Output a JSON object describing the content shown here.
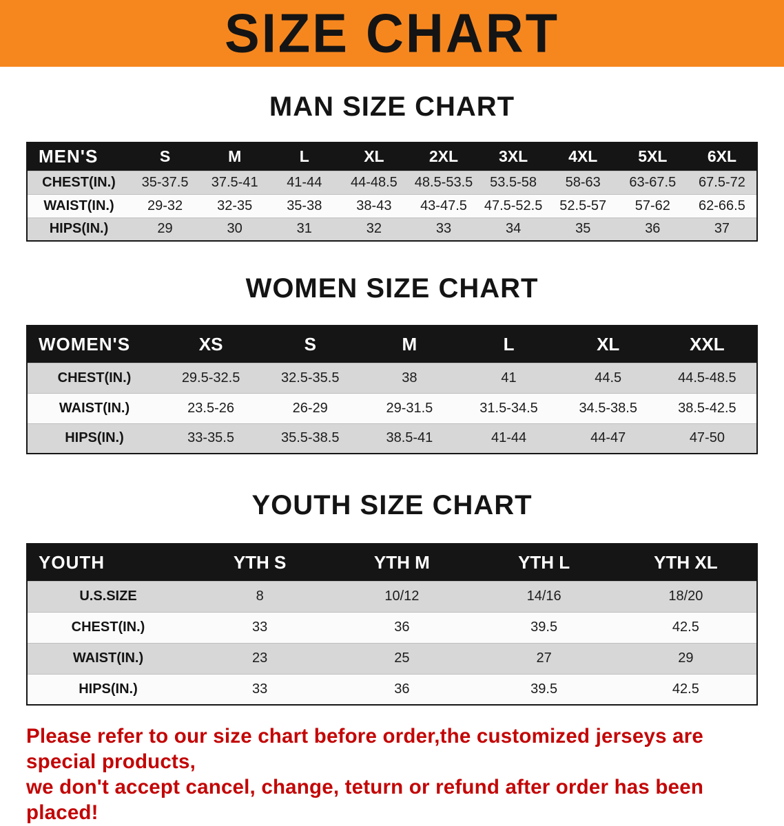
{
  "banner": {
    "title": "SIZE CHART"
  },
  "men": {
    "title": "MAN SIZE CHART",
    "corner": "MEN'S",
    "sizes": [
      "S",
      "M",
      "L",
      "XL",
      "2XL",
      "3XL",
      "4XL",
      "5XL",
      "6XL"
    ],
    "rows": [
      {
        "label": "CHEST(IN.)",
        "values": [
          "35-37.5",
          "37.5-41",
          "41-44",
          "44-48.5",
          "48.5-53.5",
          "53.5-58",
          "58-63",
          "63-67.5",
          "67.5-72"
        ]
      },
      {
        "label": "WAIST(IN.)",
        "values": [
          "29-32",
          "32-35",
          "35-38",
          "38-43",
          "43-47.5",
          "47.5-52.5",
          "52.5-57",
          "57-62",
          "62-66.5"
        ]
      },
      {
        "label": "HIPS(IN.)",
        "values": [
          "29",
          "30",
          "31",
          "32",
          "33",
          "34",
          "35",
          "36",
          "37"
        ]
      }
    ]
  },
  "women": {
    "title": "WOMEN SIZE CHART",
    "corner": "WOMEN'S",
    "sizes": [
      "XS",
      "S",
      "M",
      "L",
      "XL",
      "XXL"
    ],
    "rows": [
      {
        "label": "CHEST(IN.)",
        "values": [
          "29.5-32.5",
          "32.5-35.5",
          "38",
          "41",
          "44.5",
          "44.5-48.5"
        ]
      },
      {
        "label": "WAIST(IN.)",
        "values": [
          "23.5-26",
          "26-29",
          "29-31.5",
          "31.5-34.5",
          "34.5-38.5",
          "38.5-42.5"
        ]
      },
      {
        "label": "HIPS(IN.)",
        "values": [
          "33-35.5",
          "35.5-38.5",
          "38.5-41",
          "41-44",
          "44-47",
          "47-50"
        ]
      }
    ]
  },
  "youth": {
    "title": "YOUTH SIZE CHART",
    "corner": "YOUTH",
    "sizes": [
      "YTH S",
      "YTH M",
      "YTH L",
      "YTH XL"
    ],
    "rows": [
      {
        "label": "U.S.SIZE",
        "values": [
          "8",
          "10/12",
          "14/16",
          "18/20"
        ]
      },
      {
        "label": "CHEST(IN.)",
        "values": [
          "33",
          "36",
          "39.5",
          "42.5"
        ]
      },
      {
        "label": "WAIST(IN.)",
        "values": [
          "23",
          "25",
          "27",
          "29"
        ]
      },
      {
        "label": "HIPS(IN.)",
        "values": [
          "33",
          "36",
          "39.5",
          "42.5"
        ]
      }
    ]
  },
  "disclaimer": {
    "line1": "Please refer to our size chart before order,the customized jerseys are special products,",
    "line2": "we don't accept cancel, change, teturn or refund after order has been placed!"
  },
  "colors": {
    "banner_bg": "#f6871f",
    "table_header_bg": "#151515",
    "row_alt_gray": "#d7d7d7",
    "disclaimer_red": "#c30505"
  }
}
